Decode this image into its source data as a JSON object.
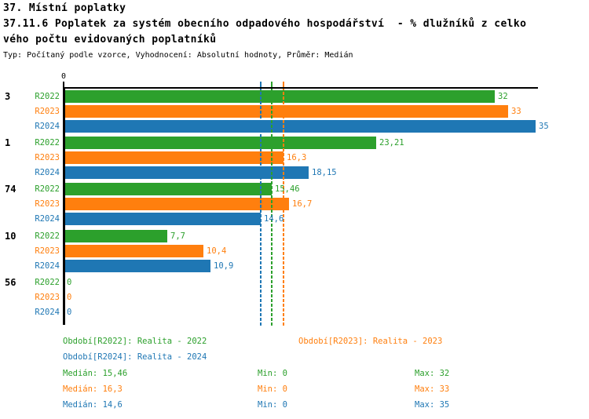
{
  "header": {
    "line1": "37. Místní poplatky",
    "line2": "37.11.6 Poplatek za systém obecního odpadového hospodářství  - % dlužníků z celko",
    "line3": "vého počtu evidovaných poplatníků",
    "meta": "Typ: Počítaný podle vzorce, Vyhodnocení: Absolutní hodnoty, Průměr: Medián"
  },
  "colors": {
    "R2022": "#2ca02c",
    "R2023": "#ff7f0e",
    "R2024": "#1f77b4",
    "axis": "#000000"
  },
  "chart_data": {
    "type": "bar",
    "orientation": "horizontal",
    "xlim": [
      0,
      35.25
    ],
    "origin_tick_label": "0",
    "grid": false,
    "series_names": [
      "R2022",
      "R2023",
      "R2024"
    ],
    "groups": [
      {
        "label": "3",
        "bars": [
          {
            "series": "R2022",
            "value": 32,
            "display": "32"
          },
          {
            "series": "R2023",
            "value": 33,
            "display": "33"
          },
          {
            "series": "R2024",
            "value": 35,
            "display": "35"
          }
        ]
      },
      {
        "label": "1",
        "bars": [
          {
            "series": "R2022",
            "value": 23.21,
            "display": "23,21"
          },
          {
            "series": "R2023",
            "value": 16.3,
            "display": "16,3"
          },
          {
            "series": "R2024",
            "value": 18.15,
            "display": "18,15"
          }
        ]
      },
      {
        "label": "74",
        "bars": [
          {
            "series": "R2022",
            "value": 15.46,
            "display": "15,46"
          },
          {
            "series": "R2023",
            "value": 16.7,
            "display": "16,7"
          },
          {
            "series": "R2024",
            "value": 14.6,
            "display": "14,6"
          }
        ]
      },
      {
        "label": "10",
        "bars": [
          {
            "series": "R2022",
            "value": 7.7,
            "display": "7,7"
          },
          {
            "series": "R2023",
            "value": 10.4,
            "display": "10,4"
          },
          {
            "series": "R2024",
            "value": 10.9,
            "display": "10,9"
          }
        ]
      },
      {
        "label": "56",
        "bars": [
          {
            "series": "R2022",
            "value": 0,
            "display": "0"
          },
          {
            "series": "R2023",
            "value": 0,
            "display": "0"
          },
          {
            "series": "R2024",
            "value": 0,
            "display": "0"
          }
        ]
      }
    ],
    "median_lines": [
      {
        "series": "R2022",
        "value": 15.46
      },
      {
        "series": "R2023",
        "value": 16.3
      },
      {
        "series": "R2024",
        "value": 14.6
      }
    ]
  },
  "legend": {
    "periods": [
      {
        "series": "R2022",
        "label": "Období[R2022]: Realita - 2022"
      },
      {
        "series": "R2023",
        "label": "Období[R2023]: Realita - 2023"
      },
      {
        "series": "R2024",
        "label": "Období[R2024]: Realita - 2024"
      }
    ],
    "stats": [
      {
        "series": "R2022",
        "median": "Medián: 15,46",
        "min": "Min: 0",
        "max": "Max: 32"
      },
      {
        "series": "R2023",
        "median": "Medián: 16,3",
        "min": "Min: 0",
        "max": "Max: 33"
      },
      {
        "series": "R2024",
        "median": "Medián: 14,6",
        "min": "Min: 0",
        "max": "Max: 35"
      }
    ]
  }
}
